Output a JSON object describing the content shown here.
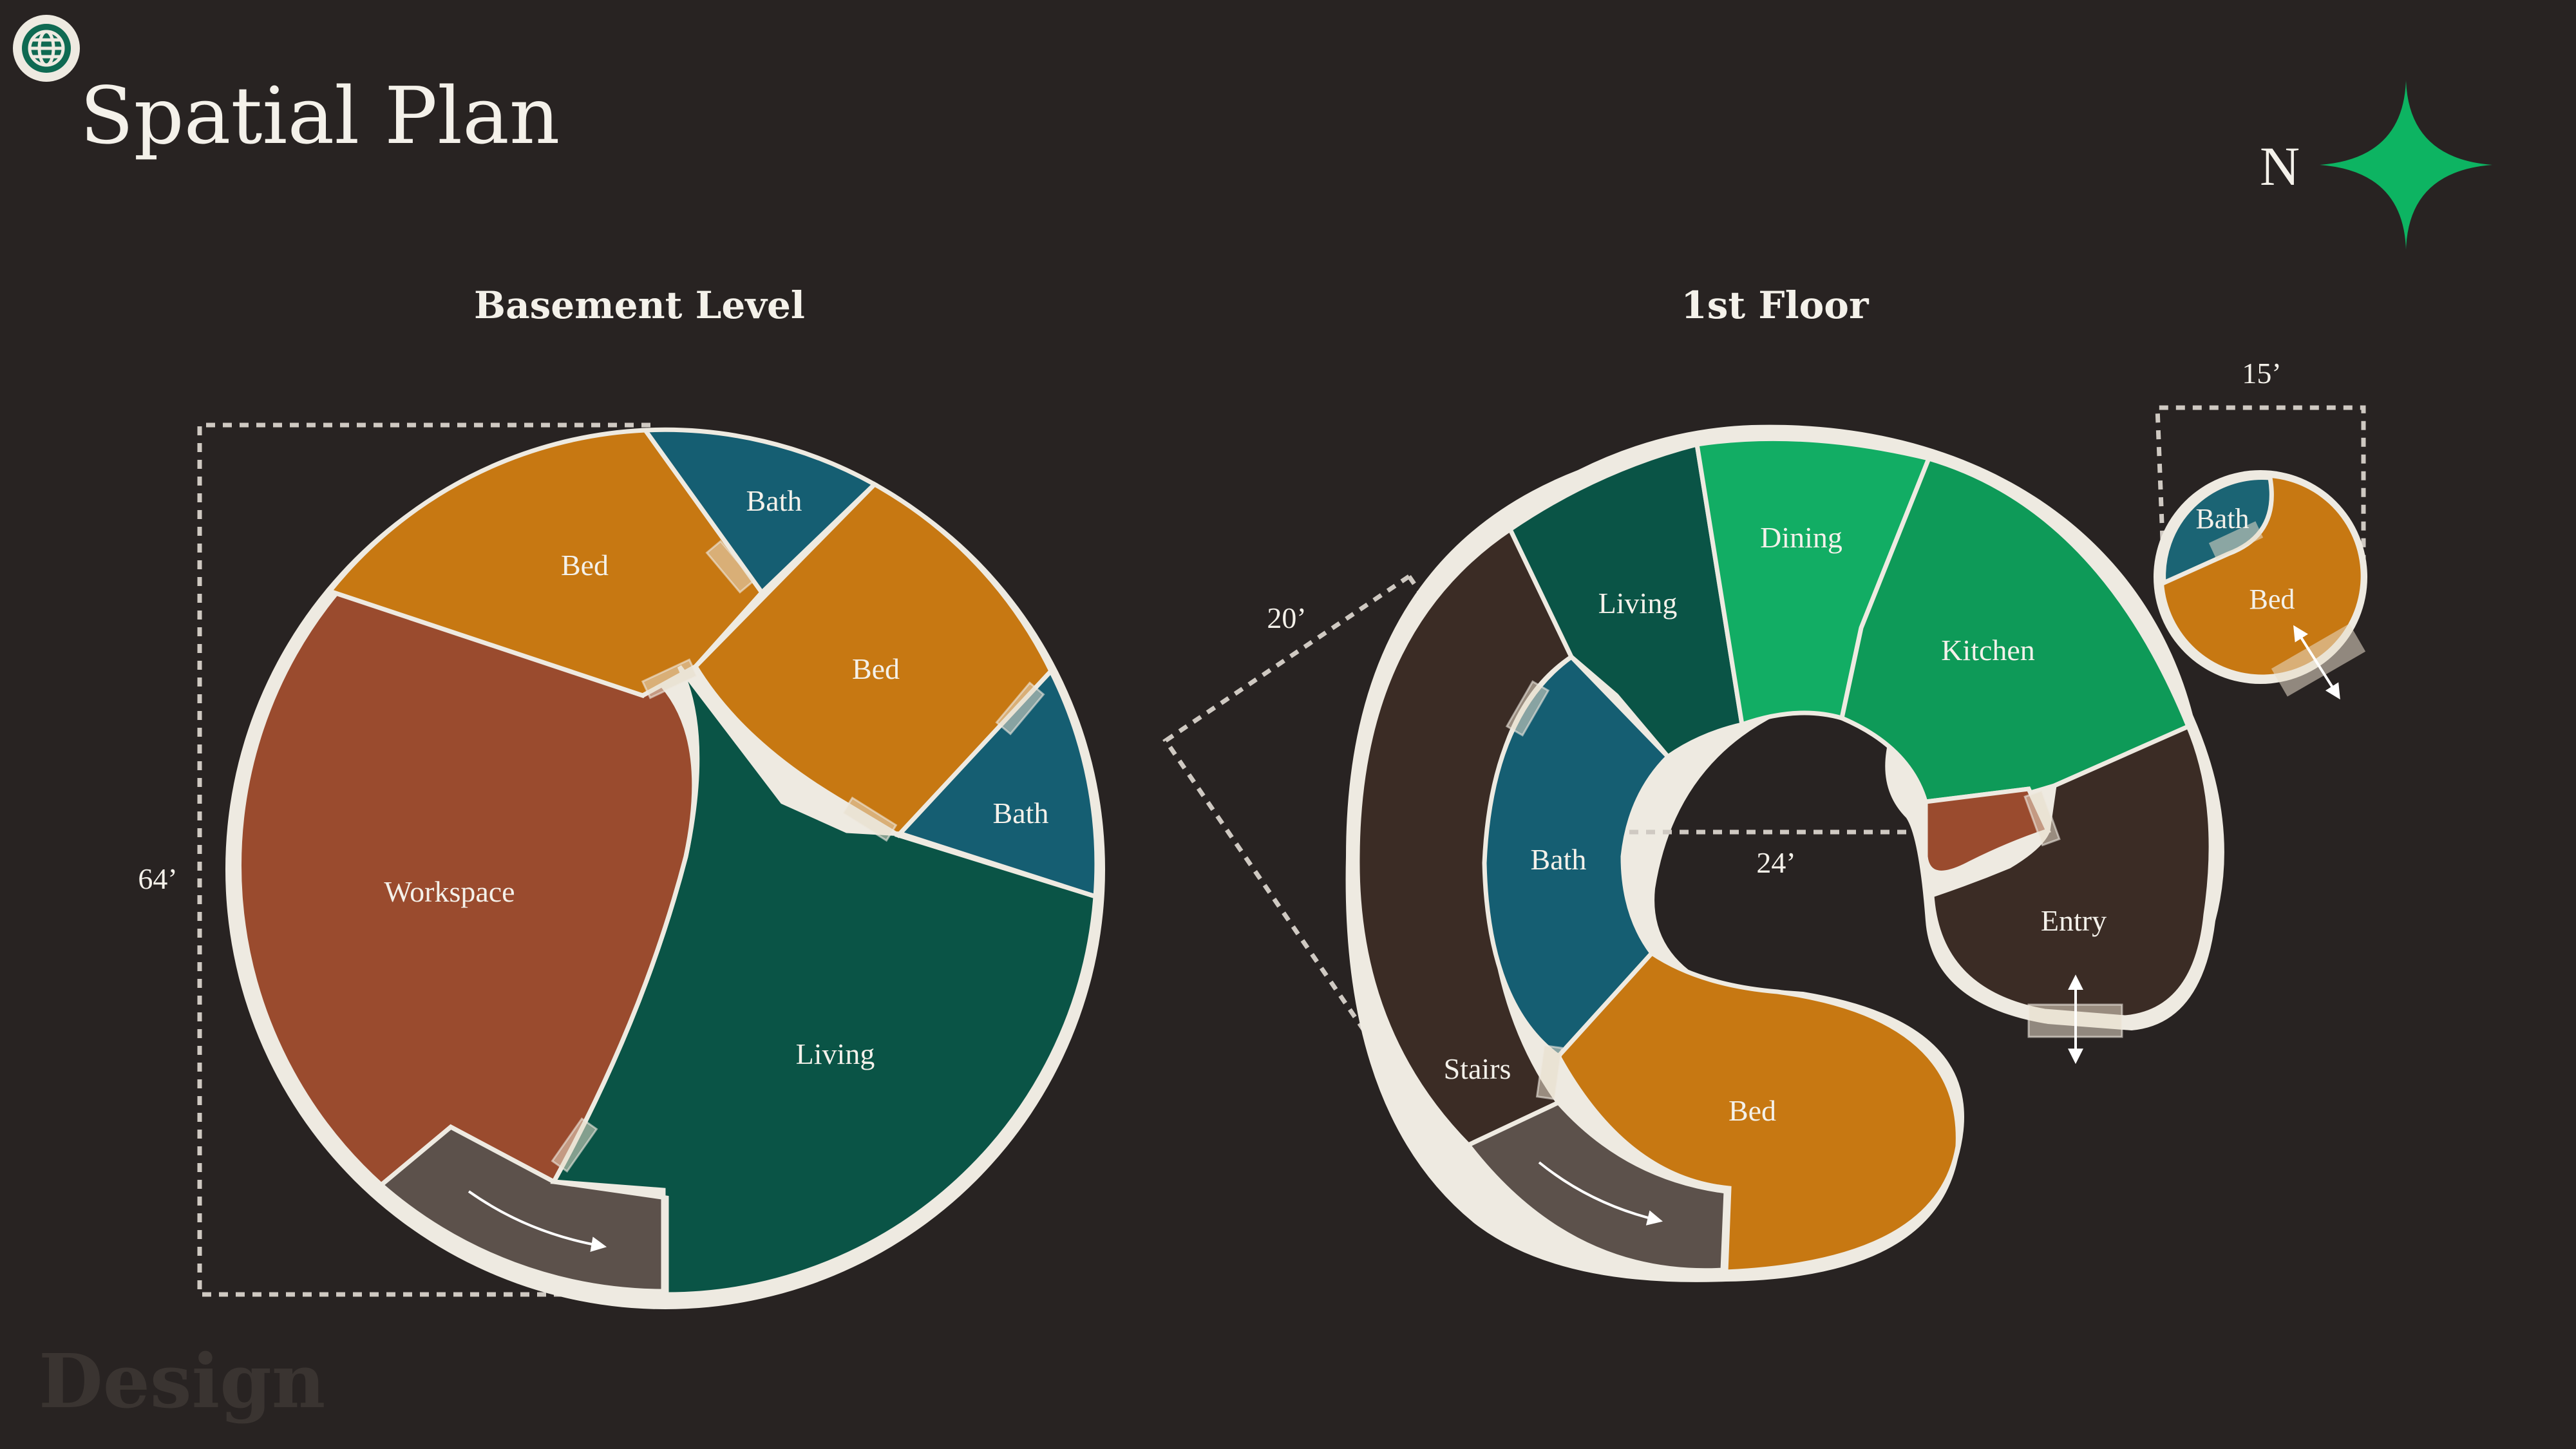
{
  "page": {
    "title": "Spatial Plan",
    "watermark": "Design",
    "logo_icon": "globe-icon"
  },
  "compass": {
    "label": "N",
    "icon": "north-star-icon",
    "color": "#0db462"
  },
  "colors": {
    "background": "#282322",
    "outline": "#eeeae1",
    "orange": "#c77812",
    "rust": "#9a4b2e",
    "teal": "#155e72",
    "dark_green": "#0a5446",
    "green": "#12a862",
    "bright_green": "#10b464",
    "dark_brown": "#3b2c25",
    "stair_gray": "#5c514b",
    "dim_dashes": "#cfc9c2"
  },
  "basement": {
    "heading": "Basement Level",
    "dimension": "64’",
    "rooms": {
      "workspace": "Workspace",
      "bed_north": "Bed",
      "bath_north": "Bath",
      "bed_east": "Bed",
      "bath_east": "Bath",
      "living": "Living"
    }
  },
  "first_floor": {
    "heading": "1st Floor",
    "dimension_inner": "24’",
    "dimension_side": "20’",
    "rooms": {
      "living": "Living",
      "dining": "Dining",
      "kitchen": "Kitchen",
      "bath": "Bath",
      "stairs": "Stairs",
      "bed": "Bed",
      "entry": "Entry"
    }
  },
  "annex": {
    "dimension": "15’",
    "rooms": {
      "bath": "Bath",
      "bed": "Bed"
    }
  }
}
